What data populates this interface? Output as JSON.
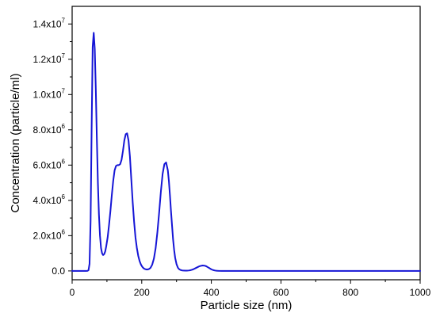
{
  "chart_data": {
    "type": "line",
    "title": "",
    "xlabel": "Particle size (nm)",
    "ylabel": "Concentration (particle/ml)",
    "xlim": [
      0,
      1000
    ],
    "ylim": [
      -500000,
      15000000
    ],
    "grid": false,
    "x_ticks": [
      {
        "value": 0,
        "label": "0"
      },
      {
        "value": 200,
        "label": "200"
      },
      {
        "value": 400,
        "label": "400"
      },
      {
        "value": 600,
        "label": "600"
      },
      {
        "value": 800,
        "label": "800"
      },
      {
        "value": 1000,
        "label": "1000"
      }
    ],
    "y_ticks": [
      {
        "value": 0,
        "mantissa": "0.0",
        "exp": ""
      },
      {
        "value": 2000000,
        "mantissa": "2.0x10",
        "exp": "6"
      },
      {
        "value": 4000000,
        "mantissa": "4.0x10",
        "exp": "6"
      },
      {
        "value": 6000000,
        "mantissa": "6.0x10",
        "exp": "6"
      },
      {
        "value": 8000000,
        "mantissa": "8.0x10",
        "exp": "6"
      },
      {
        "value": 10000000,
        "mantissa": "1.0x10",
        "exp": "7"
      },
      {
        "value": 12000000,
        "mantissa": "1.2x10",
        "exp": "7"
      },
      {
        "value": 14000000,
        "mantissa": "1.4x10",
        "exp": "7"
      }
    ],
    "series": [
      {
        "color": "#1515d6",
        "x": [
          0,
          40,
          44,
          47,
          50,
          53,
          56,
          59,
          62,
          65,
          68,
          71,
          74,
          77,
          80,
          83,
          86,
          89,
          92,
          95,
          98,
          102,
          106,
          110,
          114,
          118,
          122,
          126,
          130,
          134,
          138,
          142,
          146,
          150,
          154,
          158,
          162,
          166,
          170,
          174,
          178,
          182,
          186,
          190,
          194,
          198,
          202,
          206,
          210,
          215,
          220,
          225,
          230,
          235,
          240,
          245,
          250,
          255,
          260,
          265,
          270,
          275,
          278,
          281,
          284,
          287,
          290,
          293,
          296,
          300,
          304,
          308,
          312,
          316,
          320,
          325,
          330,
          335,
          340,
          345,
          350,
          355,
          360,
          365,
          370,
          375,
          380,
          385,
          390,
          395,
          400,
          405,
          410,
          415,
          420,
          430,
          1000
        ],
        "y": [
          0,
          0,
          5000,
          40000,
          400000,
          2800000,
          8000000,
          12700000,
          13500000,
          12600000,
          10300000,
          7500000,
          5000000,
          3200000,
          2000000,
          1300000,
          1000000,
          900000,
          950000,
          1100000,
          1400000,
          1900000,
          2600000,
          3400000,
          4300000,
          5100000,
          5700000,
          5950000,
          6000000,
          6000000,
          6050000,
          6300000,
          6800000,
          7400000,
          7750000,
          7800000,
          7400000,
          6500000,
          5200000,
          3900000,
          2800000,
          1900000,
          1300000,
          850000,
          550000,
          350000,
          220000,
          140000,
          100000,
          80000,
          100000,
          170000,
          350000,
          700000,
          1300000,
          2200000,
          3300000,
          4500000,
          5500000,
          6050000,
          6150000,
          5700000,
          5100000,
          4300000,
          3400000,
          2600000,
          1800000,
          1200000,
          750000,
          380000,
          180000,
          90000,
          50000,
          30000,
          20000,
          15000,
          18000,
          25000,
          40000,
          70000,
          110000,
          160000,
          210000,
          260000,
          290000,
          310000,
          300000,
          270000,
          210000,
          150000,
          90000,
          50000,
          25000,
          10000,
          3000,
          0,
          0
        ]
      }
    ]
  }
}
